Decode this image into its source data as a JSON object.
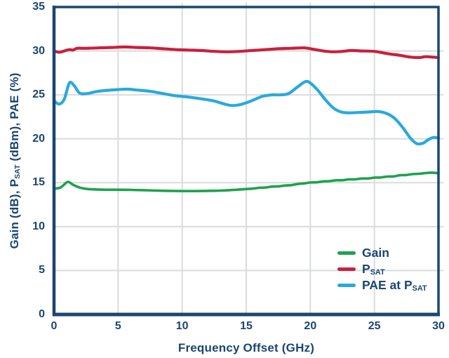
{
  "colors": {
    "navy": "#1A4672",
    "grid": "#D9DBDD",
    "background": "#FFFFFF",
    "gain_green": "#1EA24D",
    "psat_red": "#C9203C",
    "pae_cyan": "#2AA9DB"
  },
  "chart_data": {
    "type": "line",
    "title": "",
    "xlabel": "Frequency Offset (GHz)",
    "ylabel": "Gain (dB), P_SAT (dBm), PAE (%)",
    "ylabel_rich": "Gain (dB), P~SAT~ (dBm), PAE (%)",
    "xlim": [
      0,
      30
    ],
    "ylim": [
      0,
      35
    ],
    "x_ticks": [
      0,
      5,
      10,
      15,
      20,
      25,
      30
    ],
    "y_ticks": [
      0,
      5,
      10,
      15,
      20,
      25,
      30,
      35
    ],
    "grid": true,
    "legend_position": "lower right",
    "series": [
      {
        "id": "gain",
        "name": "Gain",
        "label_rich": "Gain",
        "color": "#1EA24D",
        "width": 3.6,
        "points": [
          [
            0,
            14.3
          ],
          [
            0.5,
            14.45
          ],
          [
            0.8,
            14.8
          ],
          [
            1.1,
            15.1
          ],
          [
            1.5,
            14.75
          ],
          [
            2,
            14.45
          ],
          [
            2.5,
            14.3
          ],
          [
            3,
            14.25
          ],
          [
            4,
            14.2
          ],
          [
            5,
            14.2
          ],
          [
            6,
            14.18
          ],
          [
            7,
            14.15
          ],
          [
            8,
            14.1
          ],
          [
            9,
            14.07
          ],
          [
            10,
            14.05
          ],
          [
            11,
            14.05
          ],
          [
            12,
            14.07
          ],
          [
            13,
            14.1
          ],
          [
            14,
            14.18
          ],
          [
            15,
            14.28
          ],
          [
            15.5,
            14.33
          ],
          [
            16,
            14.42
          ],
          [
            16.5,
            14.45
          ],
          [
            17,
            14.56
          ],
          [
            17.5,
            14.58
          ],
          [
            18,
            14.68
          ],
          [
            18.5,
            14.72
          ],
          [
            19,
            14.85
          ],
          [
            19.5,
            14.92
          ],
          [
            20,
            15.02
          ],
          [
            20.5,
            15.05
          ],
          [
            21,
            15.15
          ],
          [
            21.5,
            15.18
          ],
          [
            22,
            15.28
          ],
          [
            22.5,
            15.28
          ],
          [
            23,
            15.38
          ],
          [
            23.5,
            15.38
          ],
          [
            24,
            15.48
          ],
          [
            24.5,
            15.48
          ],
          [
            25,
            15.58
          ],
          [
            25.5,
            15.6
          ],
          [
            26,
            15.7
          ],
          [
            26.5,
            15.72
          ],
          [
            27,
            15.85
          ],
          [
            27.5,
            15.88
          ],
          [
            28,
            15.98
          ],
          [
            28.5,
            16.02
          ],
          [
            29,
            16.1
          ],
          [
            29.5,
            16.15
          ],
          [
            30,
            16.08
          ]
        ]
      },
      {
        "id": "psat",
        "name": "PSAT",
        "label_rich": "P~SAT~",
        "color": "#C9203C",
        "width": 4.2,
        "points": [
          [
            0,
            30.0
          ],
          [
            0.4,
            29.85
          ],
          [
            0.8,
            30.0
          ],
          [
            1.2,
            30.15
          ],
          [
            1.5,
            30.1
          ],
          [
            1.8,
            30.3
          ],
          [
            2.5,
            30.3
          ],
          [
            3.5,
            30.35
          ],
          [
            4.5,
            30.4
          ],
          [
            5.5,
            30.45
          ],
          [
            6.5,
            30.4
          ],
          [
            7.5,
            30.35
          ],
          [
            8.5,
            30.25
          ],
          [
            9.5,
            30.15
          ],
          [
            10.5,
            30.1
          ],
          [
            11.5,
            30.05
          ],
          [
            12.5,
            29.95
          ],
          [
            13.5,
            29.9
          ],
          [
            14.5,
            29.95
          ],
          [
            15.5,
            30.05
          ],
          [
            16.5,
            30.15
          ],
          [
            17.5,
            30.25
          ],
          [
            18.5,
            30.3
          ],
          [
            19.5,
            30.35
          ],
          [
            20.2,
            30.2
          ],
          [
            21,
            30.0
          ],
          [
            21.7,
            29.9
          ],
          [
            22.5,
            29.95
          ],
          [
            23.2,
            30.05
          ],
          [
            24,
            30.0
          ],
          [
            25,
            29.95
          ],
          [
            26,
            29.7
          ],
          [
            27,
            29.5
          ],
          [
            27.8,
            29.3
          ],
          [
            28.5,
            29.25
          ],
          [
            29,
            29.35
          ],
          [
            29.5,
            29.3
          ],
          [
            30,
            29.25
          ]
        ]
      },
      {
        "id": "pae",
        "name": "PAE at PSAT",
        "label_rich": "PAE at P~SAT~",
        "color": "#2AA9DB",
        "width": 4.2,
        "points": [
          [
            0,
            24.35
          ],
          [
            0.4,
            23.95
          ],
          [
            0.8,
            24.5
          ],
          [
            1.2,
            26.35
          ],
          [
            1.6,
            26.0
          ],
          [
            2,
            25.2
          ],
          [
            2.6,
            25.15
          ],
          [
            3.2,
            25.35
          ],
          [
            4,
            25.5
          ],
          [
            5,
            25.6
          ],
          [
            5.7,
            25.65
          ],
          [
            6.5,
            25.55
          ],
          [
            7.5,
            25.4
          ],
          [
            8.5,
            25.15
          ],
          [
            9.5,
            24.9
          ],
          [
            10.5,
            24.75
          ],
          [
            11.5,
            24.55
          ],
          [
            12.5,
            24.3
          ],
          [
            13.2,
            24.0
          ],
          [
            13.8,
            23.8
          ],
          [
            14.4,
            23.85
          ],
          [
            15,
            24.1
          ],
          [
            15.7,
            24.5
          ],
          [
            16.3,
            24.85
          ],
          [
            17,
            25.0
          ],
          [
            17.7,
            25.0
          ],
          [
            18.3,
            25.15
          ],
          [
            19,
            25.9
          ],
          [
            19.6,
            26.5
          ],
          [
            20,
            26.35
          ],
          [
            20.6,
            25.5
          ],
          [
            21.2,
            24.4
          ],
          [
            21.8,
            23.5
          ],
          [
            22.4,
            23.05
          ],
          [
            23,
            22.95
          ],
          [
            23.8,
            23.0
          ],
          [
            24.6,
            23.05
          ],
          [
            25.3,
            23.1
          ],
          [
            26,
            22.85
          ],
          [
            26.6,
            22.3
          ],
          [
            27.2,
            21.3
          ],
          [
            27.8,
            20.1
          ],
          [
            28.3,
            19.45
          ],
          [
            28.8,
            19.5
          ],
          [
            29.2,
            19.9
          ],
          [
            29.6,
            20.15
          ],
          [
            30,
            20.1
          ]
        ]
      }
    ]
  }
}
